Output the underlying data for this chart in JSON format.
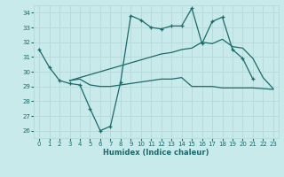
{
  "title": "",
  "xlabel": "Humidex (Indice chaleur)",
  "bg_color": "#c8eaea",
  "grid_color": "#b8dada",
  "line_color": "#1a6b6b",
  "xlim": [
    -0.5,
    23.5
  ],
  "ylim": [
    25.5,
    34.5
  ],
  "xticks": [
    0,
    1,
    2,
    3,
    4,
    5,
    6,
    7,
    8,
    9,
    10,
    11,
    12,
    13,
    14,
    15,
    16,
    17,
    18,
    19,
    20,
    21,
    22,
    23
  ],
  "yticks": [
    26,
    27,
    28,
    29,
    30,
    31,
    32,
    33,
    34
  ],
  "line1_x": [
    0,
    1,
    2,
    3,
    4,
    5,
    6,
    7,
    8,
    9,
    10,
    11,
    12,
    13,
    14,
    15,
    16,
    17,
    18,
    19,
    20,
    21
  ],
  "line1_y": [
    31.5,
    30.3,
    29.4,
    29.2,
    29.1,
    27.5,
    26.0,
    26.3,
    29.3,
    33.8,
    33.5,
    33.0,
    32.9,
    33.1,
    33.1,
    34.3,
    31.9,
    33.4,
    33.7,
    31.5,
    30.9,
    29.5
  ],
  "line2_x": [
    3,
    4,
    5,
    6,
    7,
    8,
    9,
    10,
    11,
    12,
    13,
    14,
    15,
    16,
    17,
    18,
    19,
    20,
    21,
    22,
    23
  ],
  "line2_y": [
    29.4,
    29.5,
    29.1,
    29.0,
    29.0,
    29.1,
    29.2,
    29.3,
    29.4,
    29.5,
    29.5,
    29.6,
    29.0,
    29.0,
    29.0,
    28.9,
    28.9,
    28.9,
    28.9,
    28.85,
    28.8
  ],
  "line3_x": [
    3,
    4,
    5,
    6,
    7,
    8,
    9,
    10,
    11,
    12,
    13,
    14,
    15,
    16,
    17,
    18,
    19,
    20,
    21,
    22,
    23
  ],
  "line3_y": [
    29.4,
    29.6,
    29.8,
    30.0,
    30.2,
    30.4,
    30.6,
    30.8,
    31.0,
    31.2,
    31.3,
    31.5,
    31.6,
    32.0,
    31.9,
    32.2,
    31.7,
    31.6,
    30.9,
    29.6,
    28.85
  ]
}
